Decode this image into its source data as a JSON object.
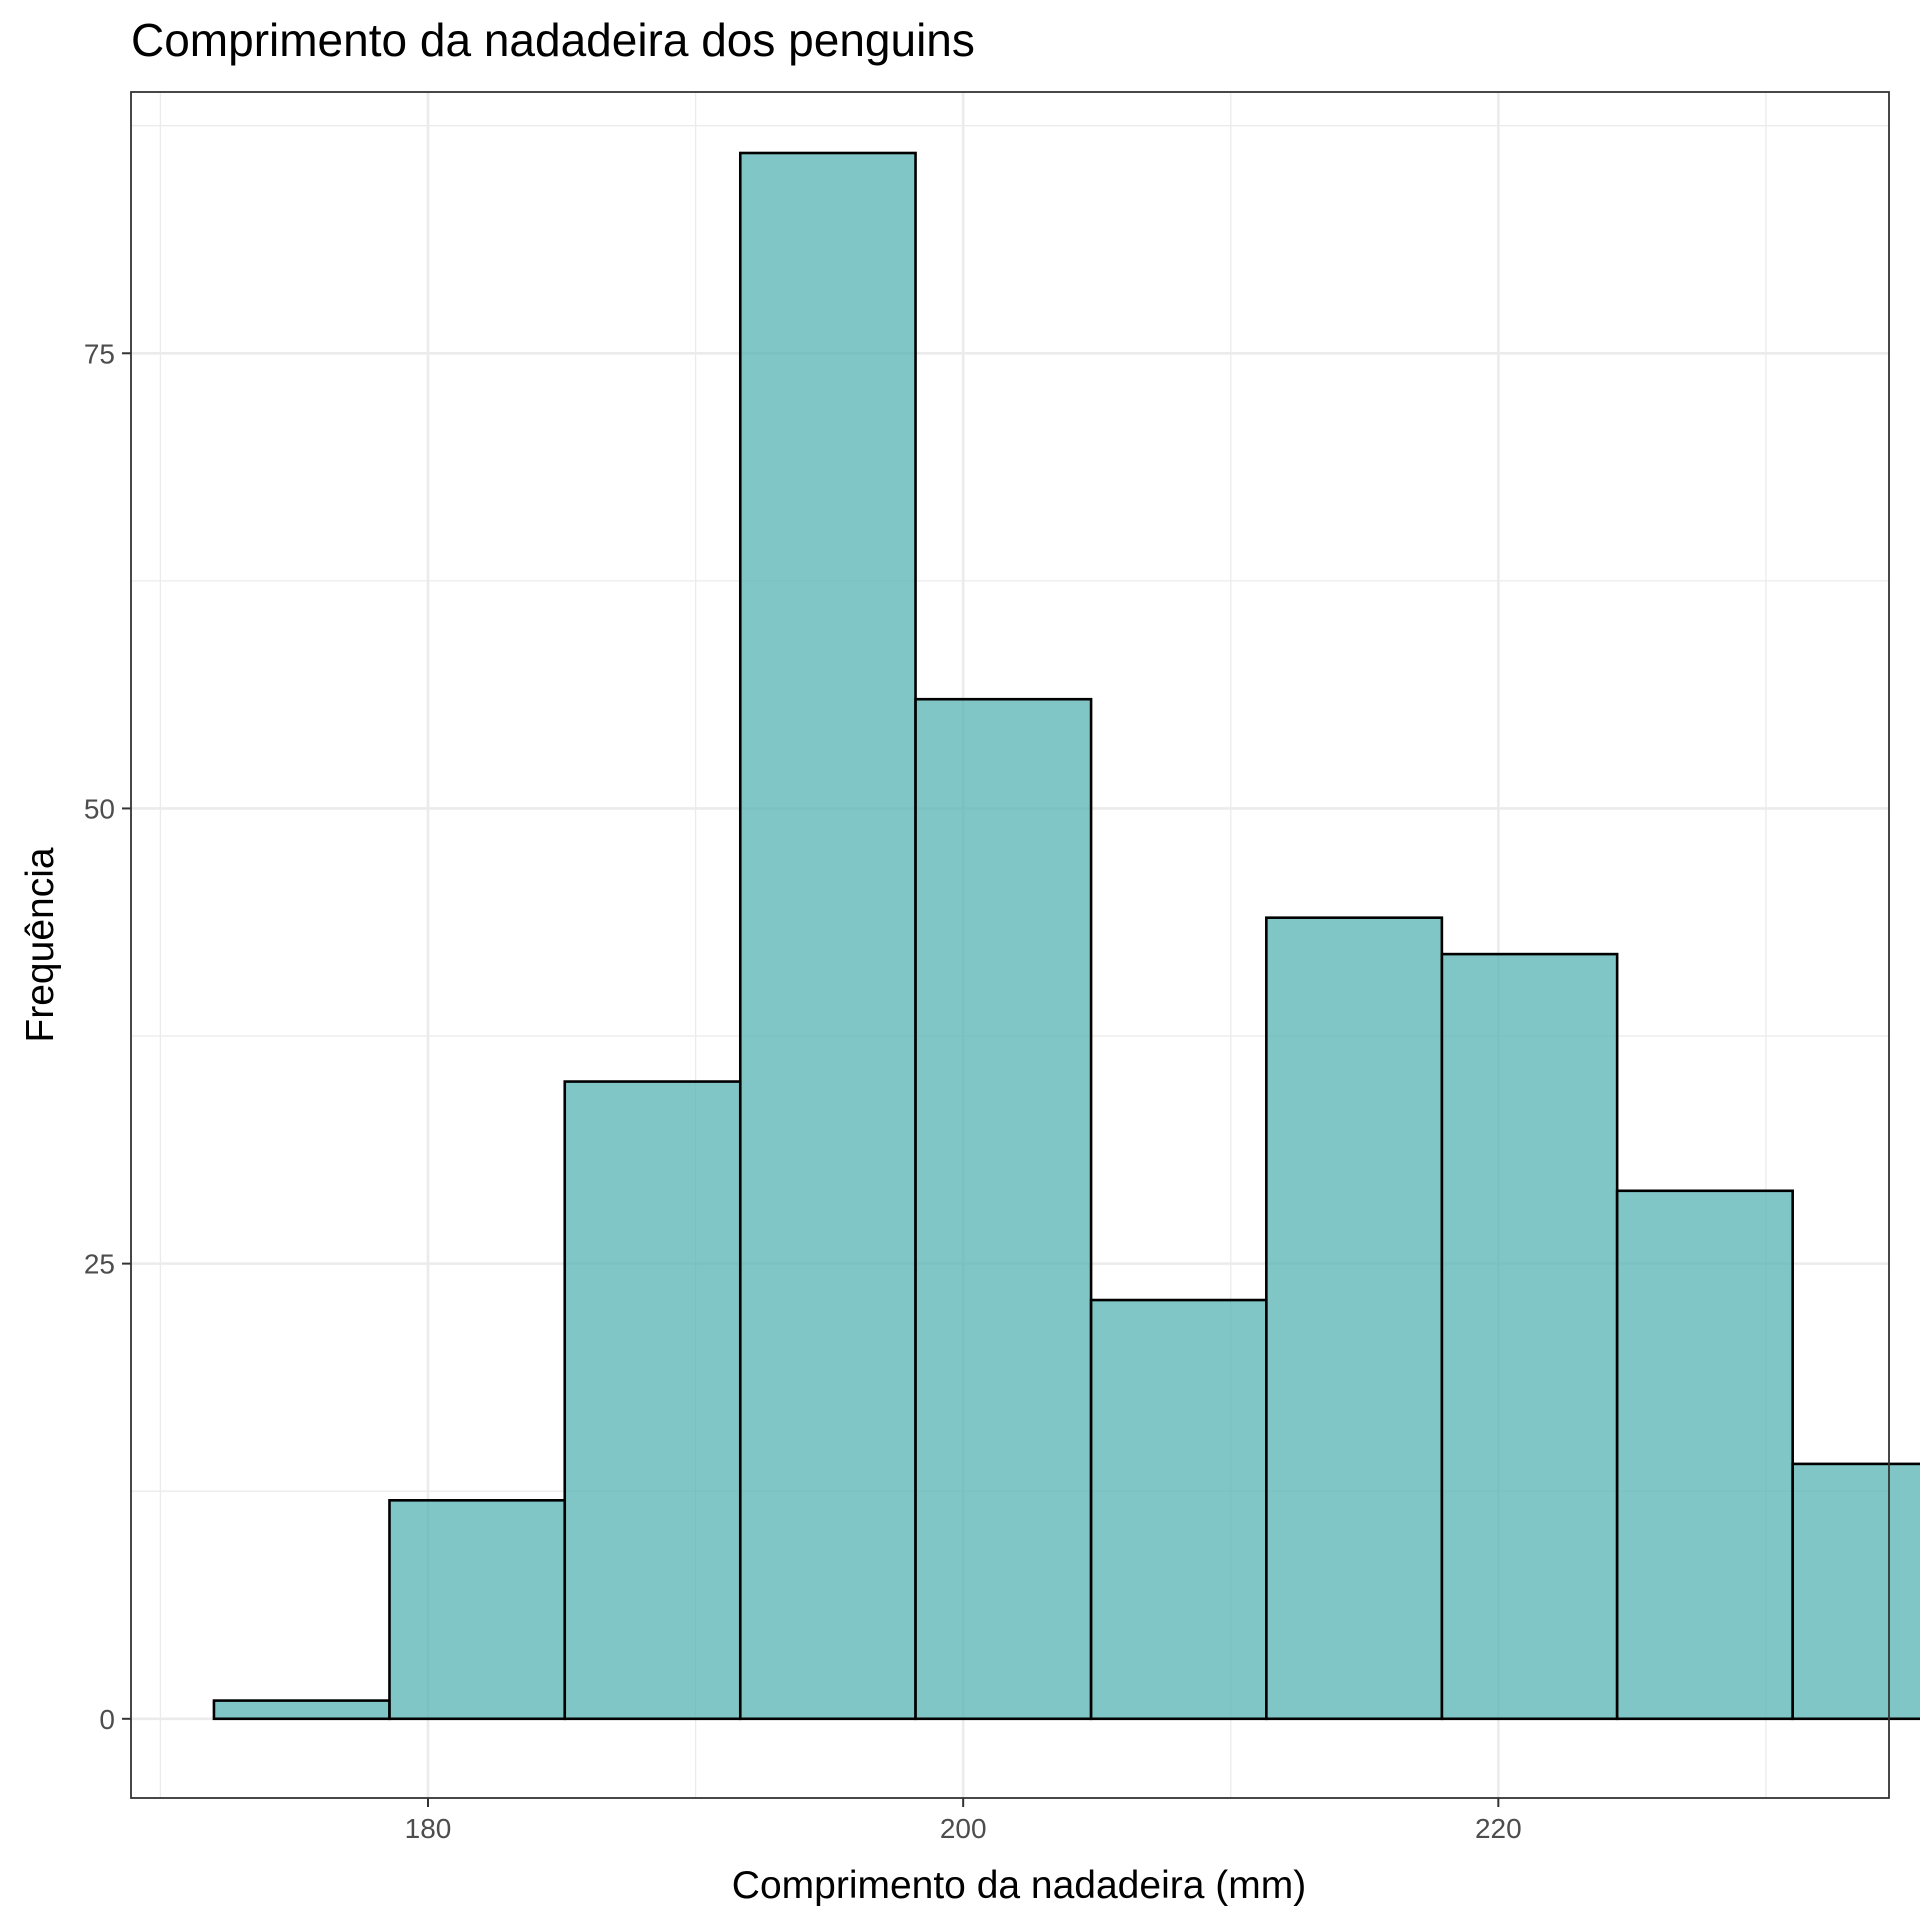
{
  "chart_data": {
    "type": "bar",
    "title": "Comprimento da nadadeira dos penguins",
    "xlabel": "Comprimento da nadadeira (mm)",
    "ylabel": "Frequência",
    "xlim": [
      168.9,
      234.6
    ],
    "ylim": [
      -4.35,
      89.35
    ],
    "xticks": [
      180,
      200,
      220
    ],
    "xtick_labels": [
      "180",
      "200",
      "220"
    ],
    "yticks": [
      0,
      25,
      50,
      75
    ],
    "ytick_labels": [
      "0",
      "25",
      "50",
      "75"
    ],
    "grid": true,
    "legend": "none",
    "bar_color": "#5ab4b4",
    "bar_edge_color": "#000000",
    "bins": [
      {
        "x0": 172.0,
        "x1": 178.56,
        "count": 1
      },
      {
        "x0": 178.56,
        "x1": 185.11,
        "count": 12
      },
      {
        "x0": 185.11,
        "x1": 191.67,
        "count": 35
      },
      {
        "x0": 191.67,
        "x1": 198.22,
        "count": 86
      },
      {
        "x0": 198.22,
        "x1": 204.78,
        "count": 56
      },
      {
        "x0": 204.78,
        "x1": 211.33,
        "count": 23
      },
      {
        "x0": 211.33,
        "x1": 217.89,
        "count": 44
      },
      {
        "x0": 217.89,
        "x1": 224.44,
        "count": 42
      },
      {
        "x0": 224.44,
        "x1": 231.0,
        "count": 29
      },
      {
        "x0": 231.0,
        "x1": 237.56,
        "count": 14
      }
    ]
  }
}
